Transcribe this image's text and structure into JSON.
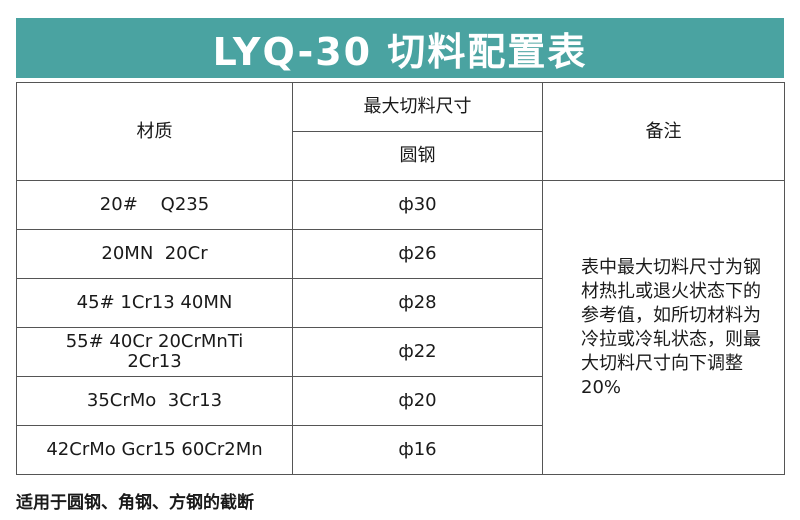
{
  "title": "LYQ-30 切料配置表",
  "header": {
    "material": "材质",
    "max_cut_size": "最大切料尺寸",
    "round_steel": "圆钢",
    "remarks": "备注"
  },
  "rows": [
    {
      "material": "20#    Q235",
      "size": "ф30"
    },
    {
      "material": "20MN  20Cr",
      "size": "ф26"
    },
    {
      "material": "45# 1Cr13 40MN",
      "size": "ф28"
    },
    {
      "material": "55# 40Cr 20CrMnTi 2Cr13",
      "size": "ф22"
    },
    {
      "material": "35CrMo  3Cr13",
      "size": "ф20"
    },
    {
      "material": "42CrMo Gcr15 60Cr2Mn",
      "size": "ф16"
    }
  ],
  "note": "表中最大切料尺寸为钢材热扎或退火状态下的参考值，如所切材料为冷拉或冷轧状态，则最大切料尺寸向下调整20%",
  "footer": "适用于圆钢、角钢、方钢的截断"
}
